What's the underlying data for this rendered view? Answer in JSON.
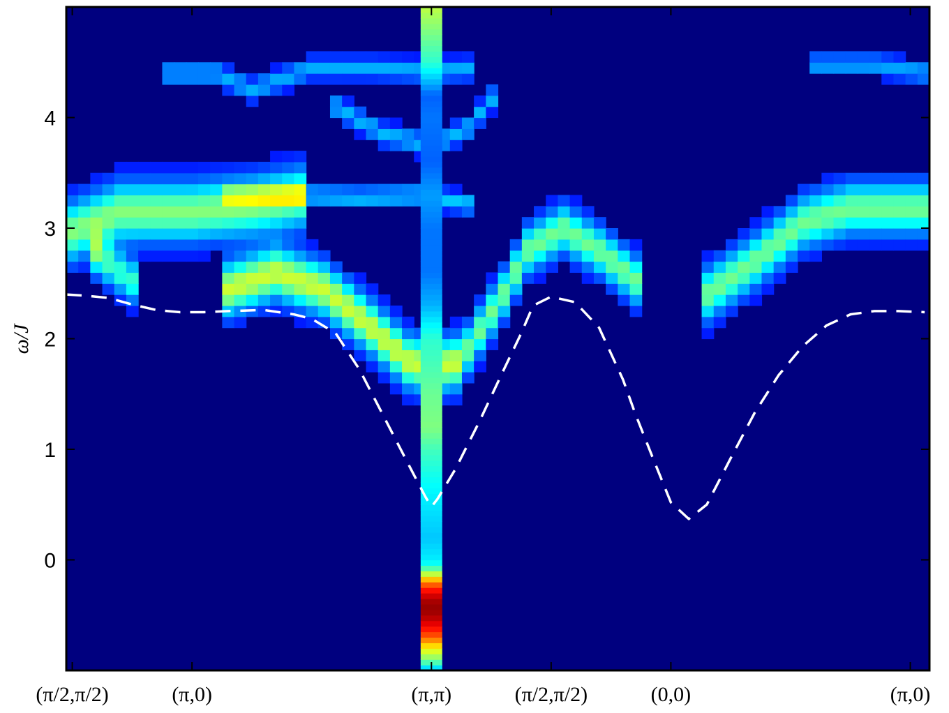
{
  "chart_data": {
    "type": "heatmap",
    "title": "",
    "xlabel": "",
    "ylabel": "ω/J",
    "ylim": [
      -1.0,
      5.0
    ],
    "xlim": [
      -0.05,
      7.16
    ],
    "yticks": [
      0,
      1,
      2,
      3,
      4
    ],
    "ytick_labels": [
      "0",
      "1",
      "2",
      "3",
      "4"
    ],
    "xticks": [
      0,
      1,
      3,
      4,
      5,
      7
    ],
    "xtick_labels": [
      "(π/2,π/2)",
      "(π,0)",
      "(π,π)",
      "(π/2,π/2)",
      "(0,0)",
      "(π,0)"
    ],
    "colormap": "jet",
    "background_color": "#00007f",
    "grid": false,
    "bands": [
      {
        "name": "",
        "x_start": -0.05,
        "x_end": 2.0,
        "points": [
          [
            -0.05,
            2.95
          ],
          [
            0.4,
            3.15
          ],
          [
            1.0,
            3.15
          ],
          [
            1.5,
            3.2
          ],
          [
            2.0,
            3.3
          ]
        ],
        "width": 0.25,
        "intensity": 0.38
      },
      {
        "name": "",
        "x_start": 5.3,
        "x_end": 7.16,
        "points": [
          [
            5.3,
            2.4
          ],
          [
            5.7,
            2.7
          ],
          [
            6.1,
            3.05
          ],
          [
            6.5,
            3.18
          ],
          [
            7.16,
            3.18
          ]
        ],
        "width": 0.22,
        "intensity": 0.36
      },
      {
        "name": "",
        "x_start": 0.15,
        "x_end": 0.6,
        "points": [
          [
            0.15,
            2.8
          ],
          [
            0.4,
            2.6
          ],
          [
            0.6,
            2.45
          ]
        ],
        "width": 0.18,
        "intensity": 0.3
      },
      {
        "name": "",
        "x_start": 1.3,
        "x_end": 3.3,
        "points": [
          [
            1.3,
            2.45
          ],
          [
            1.7,
            2.6
          ],
          [
            2.1,
            2.45
          ],
          [
            2.5,
            2.1
          ],
          [
            2.8,
            1.8
          ],
          [
            3.0,
            1.75
          ],
          [
            3.3,
            1.8
          ]
        ],
        "width": 0.22,
        "intensity": 0.45
      },
      {
        "name": "",
        "x_start": 3.3,
        "x_end": 4.8,
        "points": [
          [
            3.3,
            1.9
          ],
          [
            3.6,
            2.4
          ],
          [
            3.8,
            2.8
          ],
          [
            4.1,
            3.0
          ],
          [
            4.4,
            2.8
          ],
          [
            4.8,
            2.45
          ]
        ],
        "width": 0.2,
        "intensity": 0.36
      },
      {
        "name": "",
        "x_start": 1.3,
        "x_end": 3.4,
        "points": [
          [
            1.3,
            3.3
          ],
          [
            1.9,
            3.3
          ],
          [
            2.4,
            3.28
          ],
          [
            2.9,
            3.3
          ],
          [
            3.4,
            3.2
          ]
        ],
        "width": 0.08,
        "intensity": 0.2
      },
      {
        "name": "",
        "x_start": 0.8,
        "x_end": 3.4,
        "points": [
          [
            0.8,
            4.4
          ],
          [
            1.2,
            4.4
          ],
          [
            1.5,
            4.25
          ],
          [
            2.0,
            4.45
          ],
          [
            2.5,
            4.45
          ],
          [
            3.0,
            4.42
          ],
          [
            3.4,
            4.45
          ]
        ],
        "width": 0.09,
        "intensity": 0.17
      },
      {
        "name": "",
        "x_start": 2.2,
        "x_end": 3.6,
        "points": [
          [
            2.2,
            4.1
          ],
          [
            2.6,
            3.85
          ],
          [
            3.0,
            3.75
          ],
          [
            3.3,
            3.9
          ],
          [
            3.6,
            4.3
          ]
        ],
        "width": 0.09,
        "intensity": 0.18
      },
      {
        "name": "",
        "x_start": 6.2,
        "x_end": 7.16,
        "points": [
          [
            6.2,
            4.48
          ],
          [
            6.7,
            4.48
          ],
          [
            7.16,
            4.4
          ]
        ],
        "width": 0.09,
        "intensity": 0.16
      }
    ],
    "column": {
      "x": 3.0,
      "half_width": 0.09,
      "profile": [
        [
          -1.0,
          0.3
        ],
        [
          -0.9,
          0.5
        ],
        [
          -0.8,
          0.62
        ],
        [
          -0.7,
          0.78
        ],
        [
          -0.6,
          0.88
        ],
        [
          -0.5,
          0.96
        ],
        [
          -0.4,
          0.98
        ],
        [
          -0.3,
          0.9
        ],
        [
          -0.2,
          0.75
        ],
        [
          -0.12,
          0.55
        ],
        [
          -0.05,
          0.4
        ],
        [
          0.0,
          0.36
        ],
        [
          0.2,
          0.32
        ],
        [
          0.4,
          0.34
        ],
        [
          0.7,
          0.38
        ],
        [
          1.0,
          0.44
        ],
        [
          1.2,
          0.5
        ],
        [
          1.5,
          0.48
        ],
        [
          1.8,
          0.44
        ],
        [
          2.0,
          0.42
        ],
        [
          2.3,
          0.3
        ],
        [
          2.6,
          0.24
        ],
        [
          3.0,
          0.24
        ],
        [
          3.3,
          0.28
        ],
        [
          3.6,
          0.22
        ],
        [
          4.0,
          0.24
        ],
        [
          4.2,
          0.22
        ],
        [
          4.5,
          0.42
        ],
        [
          5.0,
          0.56
        ]
      ]
    },
    "series": [
      {
        "name": "",
        "style": "dashed",
        "color": "#ffffff",
        "x": [
          -0.05,
          0.1,
          0.3,
          0.5,
          0.7,
          0.9,
          1.1,
          1.3,
          1.6,
          1.85,
          2.0,
          2.2,
          2.4,
          2.6,
          2.8,
          2.95,
          3.0,
          3.05,
          3.2,
          3.4,
          3.6,
          3.75,
          3.85,
          4.0,
          4.2,
          4.4,
          4.6,
          4.7,
          4.85,
          5.0,
          5.15,
          5.3,
          5.5,
          5.7,
          5.9,
          6.1,
          6.3,
          6.5,
          6.7,
          6.9,
          7.12
        ],
        "y": [
          2.4,
          2.39,
          2.37,
          2.31,
          2.26,
          2.24,
          2.24,
          2.25,
          2.26,
          2.22,
          2.18,
          2.05,
          1.72,
          1.3,
          0.88,
          0.57,
          0.48,
          0.55,
          0.82,
          1.25,
          1.71,
          2.05,
          2.3,
          2.38,
          2.33,
          2.1,
          1.63,
          1.33,
          0.92,
          0.52,
          0.37,
          0.5,
          0.92,
          1.33,
          1.67,
          1.93,
          2.12,
          2.22,
          2.25,
          2.25,
          2.24
        ]
      }
    ]
  }
}
